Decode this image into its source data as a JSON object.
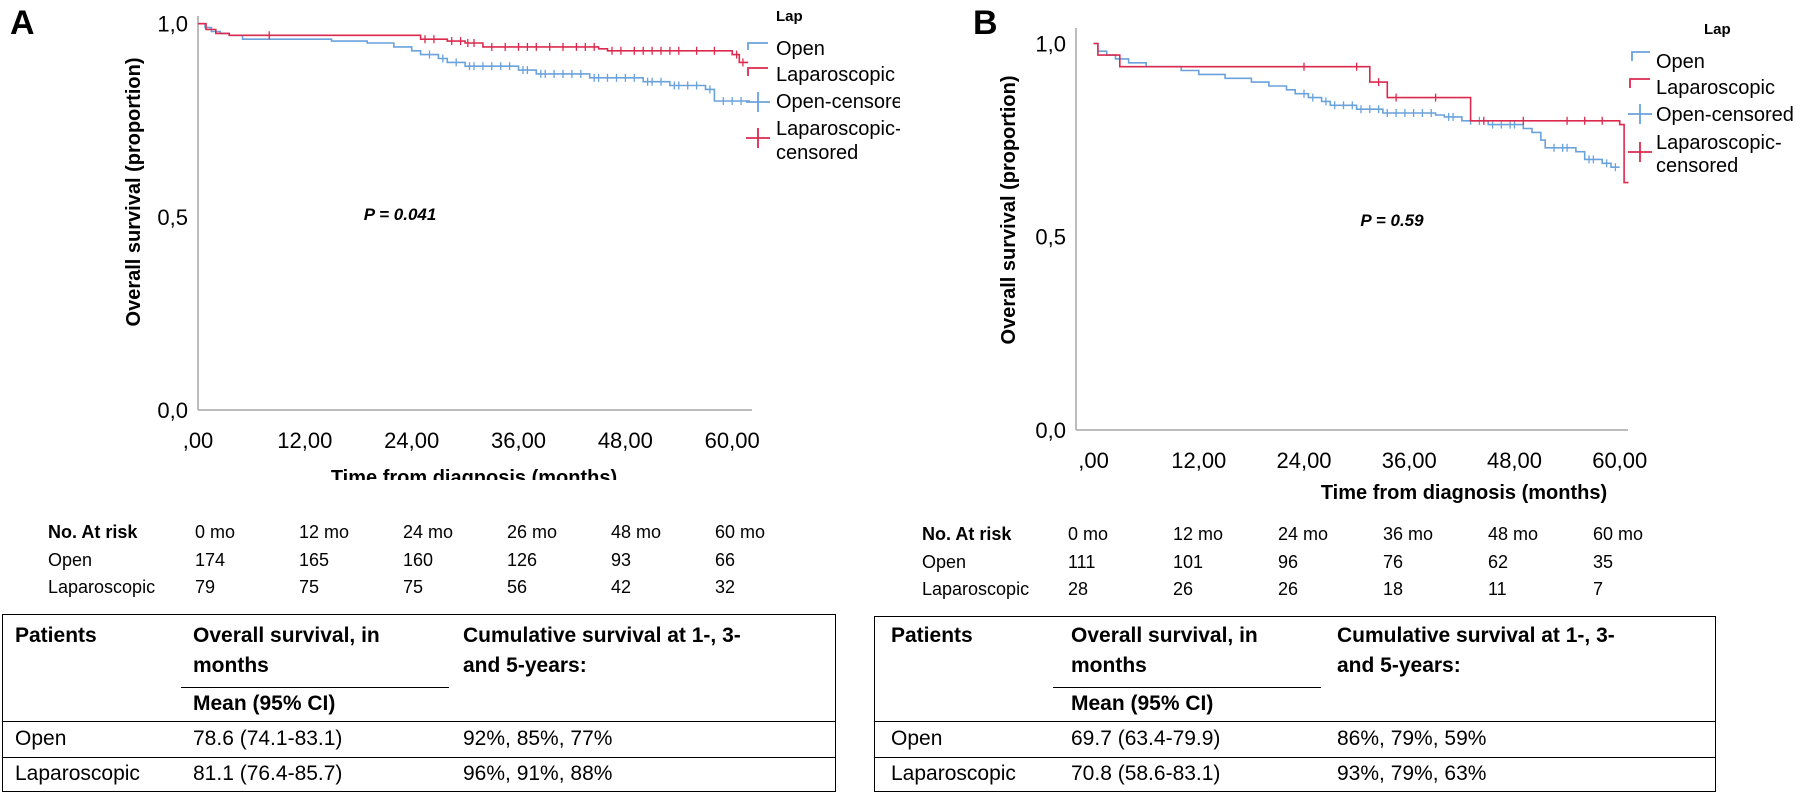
{
  "chart_data": [
    {
      "type": "line",
      "panel_label": "A",
      "xlabel": "Time from diagnosis (months)",
      "ylabel": "Overall survival (proportion)",
      "xlim": [
        0,
        62
      ],
      "ylim": [
        0,
        1.02
      ],
      "x_ticks": [
        0,
        12,
        24,
        36,
        48,
        60
      ],
      "x_tick_labels": [
        ",00",
        "12,00",
        "24,00",
        "36,00",
        "48,00",
        "60,00"
      ],
      "y_ticks": [
        0,
        0.5,
        1
      ],
      "y_tick_labels": [
        "0,0",
        "0,5",
        "1,0"
      ],
      "annotation": "P = 0.041",
      "legend": {
        "title": "Lap",
        "placement": "top-right",
        "entries": [
          "Open",
          "Laparoscopic",
          "Open-censored",
          "Laparoscopic-censored"
        ]
      },
      "series": [
        {
          "name": "Open",
          "color": "#6aa2dc",
          "steps": [
            [
              0,
              1
            ],
            [
              0.8,
              0.99
            ],
            [
              1.5,
              0.98
            ],
            [
              2.5,
              0.975
            ],
            [
              3.5,
              0.97
            ],
            [
              5,
              0.96
            ],
            [
              15,
              0.955
            ],
            [
              19,
              0.95
            ],
            [
              22,
              0.94
            ],
            [
              24,
              0.93
            ],
            [
              25,
              0.92
            ],
            [
              27,
              0.91
            ],
            [
              28,
              0.9
            ],
            [
              30,
              0.89
            ],
            [
              36,
              0.88
            ],
            [
              38,
              0.87
            ],
            [
              44,
              0.86
            ],
            [
              50,
              0.85
            ],
            [
              53,
              0.84
            ],
            [
              57,
              0.83
            ],
            [
              58,
              0.8
            ],
            [
              62,
              0.8
            ]
          ],
          "censored": [
            26,
            27.5,
            29,
            30.5,
            31,
            32,
            33,
            34,
            35,
            36.5,
            37,
            38.5,
            39,
            40,
            41,
            42,
            43,
            44.5,
            45,
            46,
            47,
            48,
            49,
            50.5,
            51,
            52,
            53.5,
            54,
            55,
            56,
            57.5,
            59,
            60,
            61
          ]
        },
        {
          "name": "Laparoscopic",
          "color": "#dc2a4e",
          "steps": [
            [
              0,
              1
            ],
            [
              0.9,
              0.985
            ],
            [
              2,
              0.975
            ],
            [
              3.5,
              0.97
            ],
            [
              25,
              0.96
            ],
            [
              28,
              0.955
            ],
            [
              30,
              0.95
            ],
            [
              32,
              0.94
            ],
            [
              45,
              0.935
            ],
            [
              46,
              0.93
            ],
            [
              60,
              0.92
            ],
            [
              60.8,
              0.9
            ],
            [
              61.8,
              0.9
            ]
          ],
          "censored": [
            8,
            25.5,
            26.5,
            28.5,
            29.5,
            30.3,
            31,
            33,
            34.5,
            36,
            37,
            38,
            39.5,
            41,
            42.5,
            43.5,
            44.5,
            46.5,
            47.5,
            49,
            50,
            51,
            52,
            53,
            54,
            56,
            58,
            60.5,
            61.2
          ]
        }
      ],
      "risk_table": {
        "header": [
          "No. At risk",
          "0 mo",
          "12 mo",
          "24 mo",
          "26 mo",
          "48 mo",
          "60 mo"
        ],
        "rows": [
          [
            "Open",
            "174",
            "165",
            "160",
            "126",
            "93",
            "66"
          ],
          [
            "Laparoscopic",
            "79",
            "75",
            "75",
            "56",
            "42",
            "32"
          ]
        ]
      },
      "summary_table": {
        "col1": "Patients",
        "col2_line1": "Overall survival, in",
        "col2_line2": "months",
        "col2_sub": "Mean (95% CI)",
        "col3_line1": "Cumulative survival at 1-, 3-",
        "col3_line2": "and 5-years:",
        "rows": [
          [
            "Open",
            "78.6 (74.1-83.1)",
            "92%, 85%, 77%"
          ],
          [
            "Laparoscopic",
            "81.1 (76.4-85.7)",
            "96%, 91%, 88%"
          ]
        ]
      }
    },
    {
      "type": "line",
      "panel_label": "B",
      "xlabel": "Time from diagnosis (months)",
      "ylabel": "Overall survival (proportion)",
      "xlim": [
        -2,
        60.6
      ],
      "ylim": [
        0,
        1.04
      ],
      "x_ticks": [
        0,
        12,
        24,
        36,
        48,
        60
      ],
      "x_tick_labels": [
        ",00",
        "12,00",
        "24,00",
        "36,00",
        "48,00",
        "60,00"
      ],
      "y_ticks": [
        0,
        0.5,
        1
      ],
      "y_tick_labels": [
        "0,0",
        "0,5",
        "1,0"
      ],
      "annotation": "P = 0.59",
      "legend": {
        "title": "Lap",
        "placement": "top-right",
        "entries": [
          "Open",
          "Laparoscopic",
          "Open-censored",
          "Laparoscopic-censored"
        ]
      },
      "series": [
        {
          "name": "Open",
          "color": "#6aa2dc",
          "steps": [
            [
              0,
              1
            ],
            [
              0.5,
              0.98
            ],
            [
              1.5,
              0.97
            ],
            [
              2.5,
              0.96
            ],
            [
              4,
              0.95
            ],
            [
              6,
              0.94
            ],
            [
              10,
              0.93
            ],
            [
              12,
              0.92
            ],
            [
              15,
              0.91
            ],
            [
              18,
              0.9
            ],
            [
              20,
              0.89
            ],
            [
              22,
              0.88
            ],
            [
              23,
              0.87
            ],
            [
              24.5,
              0.86
            ],
            [
              26,
              0.85
            ],
            [
              27,
              0.84
            ],
            [
              30,
              0.83
            ],
            [
              33,
              0.82
            ],
            [
              39,
              0.815
            ],
            [
              40,
              0.81
            ],
            [
              42,
              0.8
            ],
            [
              45,
              0.79
            ],
            [
              49,
              0.78
            ],
            [
              50,
              0.77
            ],
            [
              51,
              0.75
            ],
            [
              51.5,
              0.73
            ],
            [
              55,
              0.72
            ],
            [
              56,
              0.7
            ],
            [
              58,
              0.69
            ],
            [
              59,
              0.68
            ],
            [
              60,
              0.68
            ]
          ],
          "censored": [
            3,
            24,
            25,
            26.5,
            27.5,
            28.5,
            29.5,
            30.5,
            31.5,
            32.5,
            33.5,
            34.5,
            35.5,
            36.5,
            37.5,
            38.5,
            40.5,
            41,
            43,
            44,
            45.5,
            46.5,
            47.5,
            48,
            52.5,
            53.5,
            54,
            56.5,
            57,
            58.5,
            59.5
          ]
        },
        {
          "name": "Laparoscopic",
          "color": "#dc2a4e",
          "steps": [
            [
              0,
              1
            ],
            [
              0.5,
              0.97
            ],
            [
              3,
              0.94
            ],
            [
              31.5,
              0.9
            ],
            [
              33.5,
              0.86
            ],
            [
              43,
              0.8
            ],
            [
              60,
              0.79
            ],
            [
              60.5,
              0.64
            ],
            [
              61,
              0.64
            ]
          ],
          "censored": [
            24,
            30,
            32.5,
            34.5,
            39,
            44.5,
            49,
            54,
            56,
            58
          ]
        }
      ],
      "risk_table": {
        "header": [
          "No. At risk",
          "0 mo",
          "12 mo",
          "24 mo",
          "36 mo",
          "48 mo",
          "60 mo"
        ],
        "rows": [
          [
            "Open",
            "111",
            "101",
            "96",
            "76",
            "62",
            "35"
          ],
          [
            "Laparoscopic",
            "28",
            "26",
            "26",
            "18",
            "11",
            "7"
          ]
        ]
      },
      "summary_table": {
        "col1": "Patients",
        "col2_line1": "Overall survival, in",
        "col2_line2": "months",
        "col2_sub": "Mean (95% CI)",
        "col3_line1": "Cumulative survival at 1-, 3-",
        "col3_line2": "and 5-years:",
        "rows": [
          [
            "Open",
            "69.7 (63.4-79.9)",
            "86%, 79%, 59%"
          ],
          [
            "Laparoscopic",
            "70.8 (58.6-83.1)",
            "93%, 79%, 63%"
          ]
        ]
      }
    }
  ]
}
